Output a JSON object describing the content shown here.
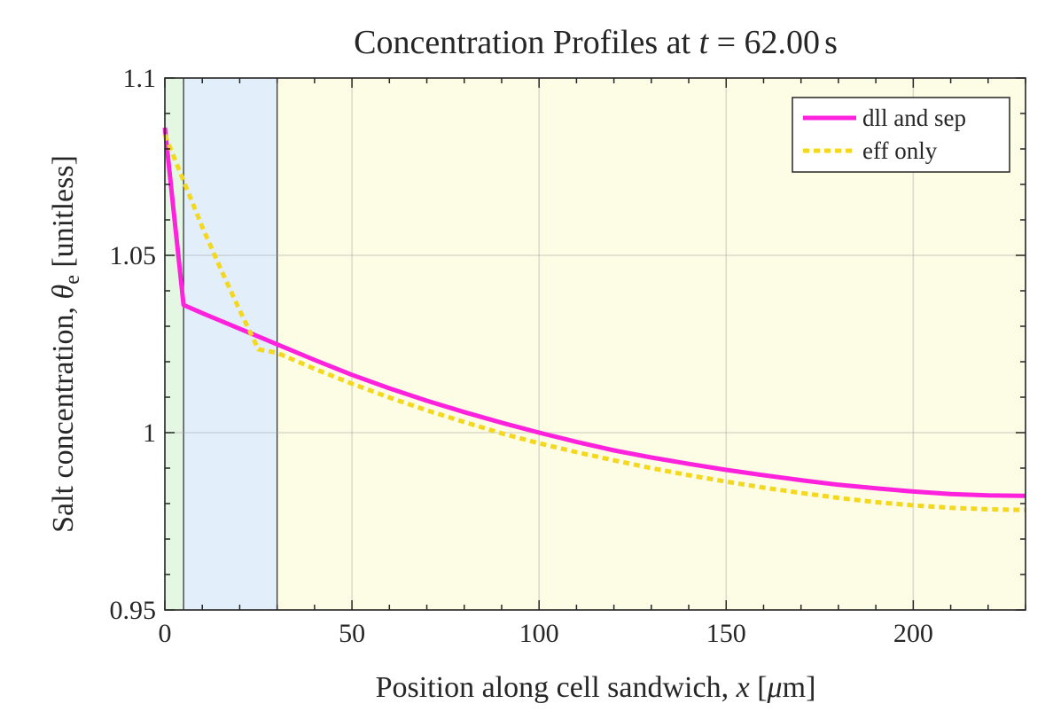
{
  "chart_data": {
    "type": "line",
    "title": "Concentration Profiles at t = 62.00 s",
    "title_parts": {
      "prefix": "Concentration Profiles at ",
      "var": "t",
      "mid": " = 62.00",
      "unit": "s"
    },
    "xlabel": "Position along cell sandwich, x [μm]",
    "xlabel_parts": {
      "prefix": "Position along cell sandwich, ",
      "var": "x",
      "open": " [",
      "unit_mu": "μ",
      "unit": "m",
      "close": "]"
    },
    "ylabel": "Salt concentration, θe [unitless]",
    "ylabel_parts": {
      "prefix": "Salt concentration, ",
      "var": "θ",
      "sub": "e",
      "suffix": " [unitless]"
    },
    "xlim": [
      0,
      230
    ],
    "ylim": [
      0.95,
      1.1
    ],
    "x_ticks": [
      0,
      50,
      100,
      150,
      200
    ],
    "x_tick_labels": [
      "0",
      "50",
      "100",
      "150",
      "200"
    ],
    "x_minor_step": 10,
    "y_ticks": [
      0.95,
      1.0,
      1.05,
      1.1
    ],
    "y_tick_labels": [
      "0.95",
      "1",
      "1.05",
      "1.1"
    ],
    "y_minor_step": 0.01,
    "grid": true,
    "legend_position": "top-right",
    "regions": [
      {
        "x0": 0,
        "x1": 5,
        "color": "#e3f7e3"
      },
      {
        "x0": 5,
        "x1": 30,
        "color": "#e2effb"
      },
      {
        "x0": 30,
        "x1": 230,
        "color": "#fdfce4"
      }
    ],
    "series": [
      {
        "name": "dll and sep",
        "color": "#ff22dd",
        "style": "solid",
        "x": [
          0,
          5,
          10,
          15,
          20,
          25,
          30,
          40,
          50,
          60,
          70,
          80,
          90,
          100,
          110,
          120,
          130,
          140,
          150,
          160,
          170,
          180,
          190,
          200,
          210,
          220,
          230
        ],
        "y": [
          1.086,
          1.036,
          1.0337,
          1.0315,
          1.0293,
          1.0271,
          1.0249,
          1.0205,
          1.0163,
          1.0125,
          1.009,
          1.0058,
          1.0028,
          1.0,
          0.9974,
          0.995,
          0.993,
          0.9912,
          0.9895,
          0.988,
          0.9866,
          0.9853,
          0.9843,
          0.9834,
          0.9827,
          0.9823,
          0.9822
        ]
      },
      {
        "name": "eff only",
        "color": "#f4d820",
        "style": "dotted",
        "x": [
          0,
          5,
          10,
          15,
          20,
          25,
          30,
          40,
          50,
          60,
          70,
          80,
          90,
          100,
          110,
          120,
          130,
          140,
          150,
          160,
          170,
          180,
          190,
          200,
          210,
          220,
          230
        ],
        "y": [
          1.084,
          1.071,
          1.058,
          1.046,
          1.0345,
          1.0235,
          1.0225,
          1.018,
          1.0138,
          1.0099,
          1.0063,
          1.003,
          0.9998,
          0.997,
          0.9945,
          0.9922,
          0.99,
          0.988,
          0.9862,
          0.9845,
          0.983,
          0.9816,
          0.9804,
          0.9795,
          0.9788,
          0.9784,
          0.9782
        ]
      }
    ]
  }
}
